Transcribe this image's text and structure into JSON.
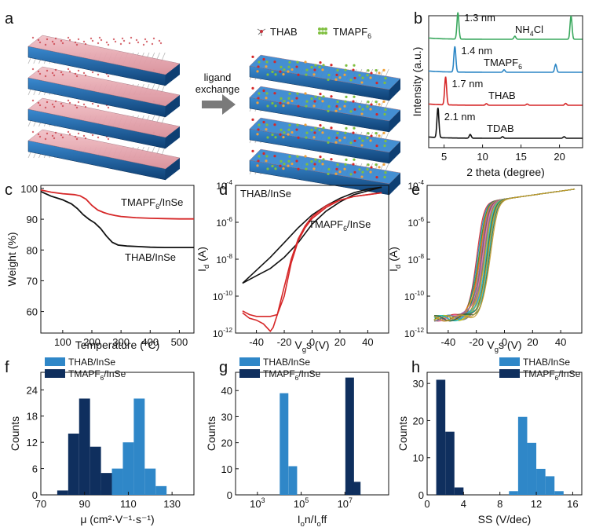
{
  "panel_letters": [
    "a",
    "b",
    "c",
    "d",
    "e",
    "f",
    "g",
    "h"
  ],
  "schematic": {
    "legend_thab": "THAB",
    "legend_tmapf6": "TMAPF6",
    "arrow_label_1": "ligand",
    "arrow_label_2": "exchange",
    "colors": {
      "slab_top": "#1f6db0",
      "slab_side": "#0e3f73",
      "film": "#e8a6ae",
      "ligand": "#b8b8b8",
      "tmapf6": "#7fbf3f"
    }
  },
  "chart_data": [
    {
      "panel": "b",
      "type": "line",
      "title": "",
      "xlabel": "2 theta (degree)",
      "ylabel": "Intensity (a.u.)",
      "xlim": [
        3,
        23
      ],
      "xticks": [
        5,
        10,
        15,
        20
      ],
      "series": [
        {
          "name": "NH4Cl",
          "color": "#3aa85e",
          "offset": 3,
          "peaks": [
            [
              6.8,
              0.85
            ],
            [
              14.2,
              0.1
            ],
            [
              21.5,
              0.75
            ]
          ],
          "annotation": "1.3 nm"
        },
        {
          "name": "TMAPF6",
          "color": "#2b86c5",
          "offset": 2,
          "peaks": [
            [
              6.4,
              0.82
            ],
            [
              12.8,
              0.08
            ],
            [
              19.5,
              0.25
            ]
          ],
          "annotation": "1.4 nm"
        },
        {
          "name": "THAB",
          "color": "#d62728",
          "offset": 1,
          "peaks": [
            [
              5.2,
              0.9
            ],
            [
              10.5,
              0.05
            ],
            [
              15.8,
              0.04
            ],
            [
              20.8,
              0.06
            ]
          ],
          "annotation": "1.7 nm"
        },
        {
          "name": "TDAB",
          "color": "#111111",
          "offset": 0,
          "peaks": [
            [
              4.2,
              0.95
            ],
            [
              8.4,
              0.12
            ],
            [
              12.6,
              0.05
            ],
            [
              20.6,
              0.05
            ]
          ],
          "annotation": "2.1 nm"
        }
      ]
    },
    {
      "panel": "c",
      "type": "line",
      "title": "",
      "xlabel": "Temperature (°C)",
      "ylabel": "Weight (%)",
      "xlim": [
        25,
        550
      ],
      "ylim": [
        53,
        101
      ],
      "xticks": [
        100,
        200,
        300,
        400,
        500
      ],
      "yticks": [
        60,
        70,
        80,
        90,
        100
      ],
      "series": [
        {
          "name": "TMAPF6/InSe",
          "color": "#d62728",
          "x": [
            25,
            60,
            100,
            140,
            160,
            180,
            200,
            220,
            240,
            260,
            280,
            300,
            350,
            400,
            450,
            500,
            550
          ],
          "y": [
            99.5,
            98.8,
            98.3,
            98.0,
            97.6,
            96.5,
            94.5,
            93.0,
            92.2,
            91.6,
            91.2,
            90.9,
            90.5,
            90.3,
            90.2,
            90.1,
            90.1
          ]
        },
        {
          "name": "THAB/InSe",
          "color": "#111111",
          "x": [
            25,
            60,
            100,
            130,
            150,
            170,
            190,
            210,
            230,
            250,
            270,
            290,
            320,
            360,
            400,
            450,
            500,
            550
          ],
          "y": [
            99.0,
            97.5,
            96.3,
            95.0,
            93.5,
            91.5,
            90.0,
            88.8,
            87.0,
            84.5,
            82.5,
            81.6,
            81.3,
            81.1,
            80.9,
            80.8,
            80.8,
            80.8
          ]
        }
      ]
    },
    {
      "panel": "d",
      "type": "line",
      "title": "",
      "xlabel": "V_gs (V)",
      "ylabel": "I_d (A)",
      "xlim": [
        -55,
        55
      ],
      "ylim_log10": [
        -12,
        -4
      ],
      "xticks": [
        -40,
        -20,
        0,
        20,
        40
      ],
      "yticks_log10": [
        -12,
        -10,
        -8,
        -6,
        -4
      ],
      "series": [
        {
          "name": "THAB/InSe",
          "color": "#111111",
          "sweeps": [
            {
              "x": [
                -50,
                -40,
                -30,
                -20,
                -10,
                0,
                10,
                20,
                30,
                40,
                50
              ],
              "log_y": [
                -9.3,
                -8.6,
                -7.9,
                -7.1,
                -6.3,
                -5.6,
                -5.1,
                -4.7,
                -4.4,
                -4.2,
                -4.1
              ]
            },
            {
              "x": [
                -50,
                -40,
                -30,
                -20,
                -10,
                0,
                10,
                20,
                30,
                40,
                50
              ],
              "log_y": [
                -9.3,
                -8.9,
                -8.5,
                -7.9,
                -7.1,
                -6.1,
                -5.4,
                -4.9,
                -4.5,
                -4.3,
                -4.1
              ]
            }
          ]
        },
        {
          "name": "TMAPF6/InSe",
          "color": "#d62728",
          "sweeps": [
            {
              "x": [
                -50,
                -45,
                -40,
                -35,
                -30,
                -25,
                -20,
                -15,
                -10,
                -5,
                0,
                10,
                20,
                30,
                40,
                50
              ],
              "log_y": [
                -10.8,
                -11.0,
                -11.1,
                -11.1,
                -11.1,
                -11.0,
                -10.0,
                -8.2,
                -7.0,
                -6.3,
                -5.8,
                -5.2,
                -4.8,
                -4.6,
                -4.5,
                -4.4
              ]
            },
            {
              "x": [
                -50,
                -45,
                -40,
                -35,
                -30,
                -28,
                -25,
                -20,
                -15,
                -10,
                -5,
                0,
                10,
                20,
                30,
                40,
                50
              ],
              "log_y": [
                -10.9,
                -11.2,
                -11.3,
                -11.5,
                -11.9,
                -11.7,
                -11.0,
                -9.5,
                -8.0,
                -6.9,
                -6.2,
                -5.7,
                -5.1,
                -4.8,
                -4.6,
                -4.5,
                -4.4
              ]
            }
          ]
        }
      ]
    },
    {
      "panel": "e",
      "type": "line",
      "title": "",
      "xlabel": "V_gs (V)",
      "ylabel": "I_d (A)",
      "xlim": [
        -55,
        55
      ],
      "ylim_log10": [
        -12,
        -4
      ],
      "xticks": [
        -40,
        -20,
        0,
        20,
        40
      ],
      "yticks_log10": [
        -12,
        -10,
        -8,
        -6,
        -4
      ],
      "n_devices": 12,
      "threshold_spread_V": [
        -18,
        -10
      ],
      "off_current_log10": -11.2,
      "on_current_log10": -4.2,
      "curve_colors": [
        "#d62728",
        "#1f77b4",
        "#2ca02c",
        "#ff7f0e",
        "#9467bd",
        "#8c564b",
        "#e377c2",
        "#7f7f7f",
        "#bcbd22",
        "#17becf",
        "#3b6e3b",
        "#c49a2c"
      ]
    },
    {
      "panel": "f",
      "type": "bar",
      "title": "",
      "xlabel": "μ (cm²·V⁻¹·s⁻¹)",
      "ylabel": "Counts",
      "xlim": [
        70,
        140
      ],
      "ylim": [
        0,
        28
      ],
      "xticks": [
        70,
        90,
        110,
        130
      ],
      "yticks": [
        0,
        6,
        12,
        18,
        24
      ],
      "bin_width": 5,
      "series": [
        {
          "name": "THAB/InSe",
          "color": "#2f87c8",
          "centers": [
            100,
            105,
            110,
            115,
            120,
            125
          ],
          "values": [
            1,
            6,
            12,
            22,
            6,
            2
          ]
        },
        {
          "name": "TMAPF6/InSe",
          "color": "#0f2f5e",
          "centers": [
            80,
            85,
            90,
            95,
            100
          ],
          "values": [
            1,
            14,
            22,
            11,
            5
          ]
        }
      ]
    },
    {
      "panel": "g",
      "type": "bar",
      "title": "",
      "xlabel": "I_on/I_off",
      "ylabel": "Counts",
      "xlim_log10": [
        2,
        9
      ],
      "ylim": [
        0,
        47
      ],
      "xticks_log10": [
        3,
        5,
        7
      ],
      "yticks": [
        0,
        10,
        20,
        30,
        40
      ],
      "series": [
        {
          "name": "THAB/InSe",
          "color": "#2f87c8",
          "centers_log10": [
            4.2,
            4.6
          ],
          "values": [
            39,
            11
          ]
        },
        {
          "name": "TMAPF6/InSe",
          "color": "#0f2f5e",
          "centers_log10": [
            7.2,
            7.5
          ],
          "values": [
            45,
            5
          ]
        }
      ]
    },
    {
      "panel": "h",
      "type": "bar",
      "title": "",
      "xlabel": "SS (V/dec)",
      "ylabel": "Counts",
      "xlim": [
        0,
        17
      ],
      "ylim": [
        0,
        33
      ],
      "xticks": [
        0,
        4,
        8,
        12,
        16
      ],
      "yticks": [
        0,
        10,
        20,
        30
      ],
      "bin_width": 1,
      "series": [
        {
          "name": "THAB/InSe",
          "color": "#2f87c8",
          "centers": [
            9.5,
            10.5,
            11.5,
            12.5,
            13.5,
            14.5
          ],
          "values": [
            1,
            21,
            14,
            7,
            5,
            1
          ]
        },
        {
          "name": "TMAPF6/InSe",
          "color": "#0f2f5e",
          "centers": [
            1.5,
            2.5,
            3.5
          ],
          "values": [
            31,
            17,
            2
          ]
        }
      ]
    }
  ]
}
